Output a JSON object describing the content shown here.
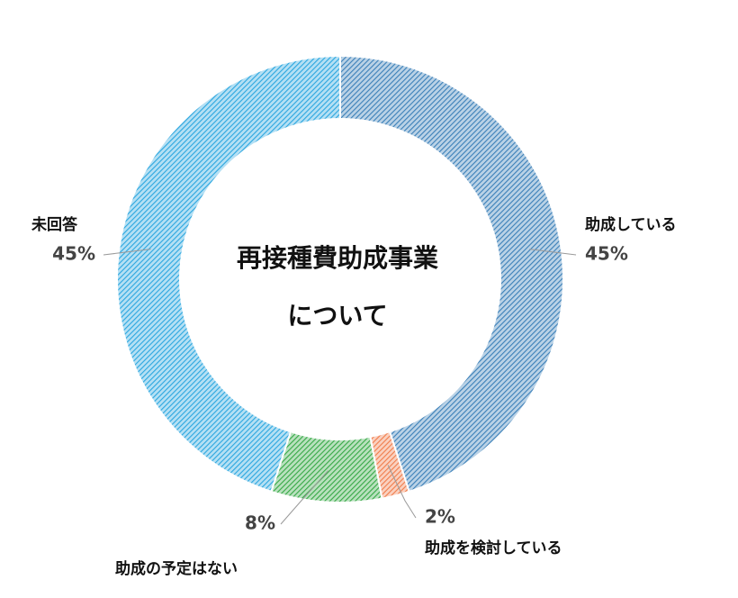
{
  "chart_data": {
    "type": "pie",
    "title": [
      "再接種費助成事業",
      "について"
    ],
    "categories": [
      "助成している",
      "助成を検討している",
      "助成の予定はない",
      "未回答"
    ],
    "values": [
      45,
      2,
      8,
      45
    ],
    "value_labels": [
      "45%",
      "2%",
      "8%",
      "45%"
    ],
    "colors": [
      "#3a7fb8",
      "#f07c4a",
      "#35a845",
      "#2aa6df"
    ],
    "donut": true
  }
}
